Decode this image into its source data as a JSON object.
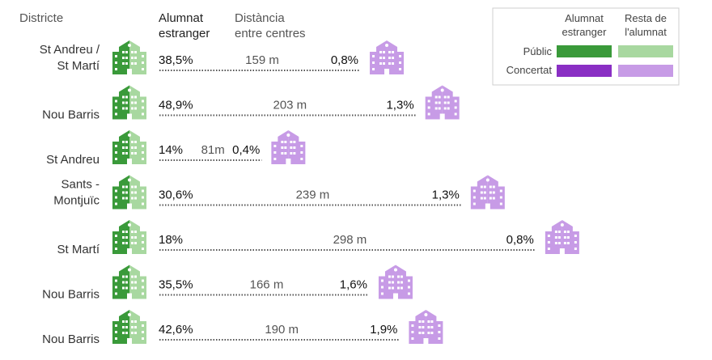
{
  "headers": {
    "district": "Districte",
    "foreign": [
      "Alumnat",
      "estranger"
    ],
    "distance": [
      "Distància",
      "entre centres"
    ]
  },
  "legend": {
    "col_foreign": [
      "Alumnat",
      "estranger"
    ],
    "col_rest": [
      "Resta de",
      "l'alumnat"
    ],
    "row_public": "Públic",
    "row_concertat": "Concertat"
  },
  "colors": {
    "public_foreign": "#3a9a3a",
    "public_rest": "#a8d8a0",
    "concertat_foreign": "#8a2fc4",
    "concertat_rest": "#c79be6"
  },
  "icons": {
    "public_school": "school-building-icon",
    "concertat_school": "school-building-icon"
  },
  "chart_data": {
    "type": "table",
    "distance_unit": "m",
    "columns": [
      "Districte",
      "Alumnat estranger (públic)",
      "Distància entre centres",
      "Alumnat estranger (concertat)"
    ],
    "rows": [
      {
        "district": [
          "St Andreu /",
          "St Martí"
        ],
        "public_foreign": "38,5%",
        "distance": 159,
        "distance_label": "159 m",
        "concertat_foreign": "0,8%"
      },
      {
        "district": [
          "Nou Barris"
        ],
        "public_foreign": "48,9%",
        "distance": 203,
        "distance_label": "203 m",
        "concertat_foreign": "1,3%"
      },
      {
        "district": [
          "St Andreu"
        ],
        "public_foreign": "14%",
        "distance": 81,
        "distance_label": "81m",
        "concertat_foreign": "0,4%"
      },
      {
        "district": [
          "Sants -",
          "Montjuïc"
        ],
        "public_foreign": "30,6%",
        "distance": 239,
        "distance_label": "239 m",
        "concertat_foreign": "1,3%"
      },
      {
        "district": [
          "St Martí"
        ],
        "public_foreign": "18%",
        "distance": 298,
        "distance_label": "298 m",
        "concertat_foreign": "0,8%"
      },
      {
        "district": [
          "Nou Barris"
        ],
        "public_foreign": "35,5%",
        "distance": 166,
        "distance_label": "166 m",
        "concertat_foreign": "1,6%"
      },
      {
        "district": [
          "Nou Barris"
        ],
        "public_foreign": "42,6%",
        "distance": 190,
        "distance_label": "190 m",
        "concertat_foreign": "1,9%"
      }
    ]
  }
}
